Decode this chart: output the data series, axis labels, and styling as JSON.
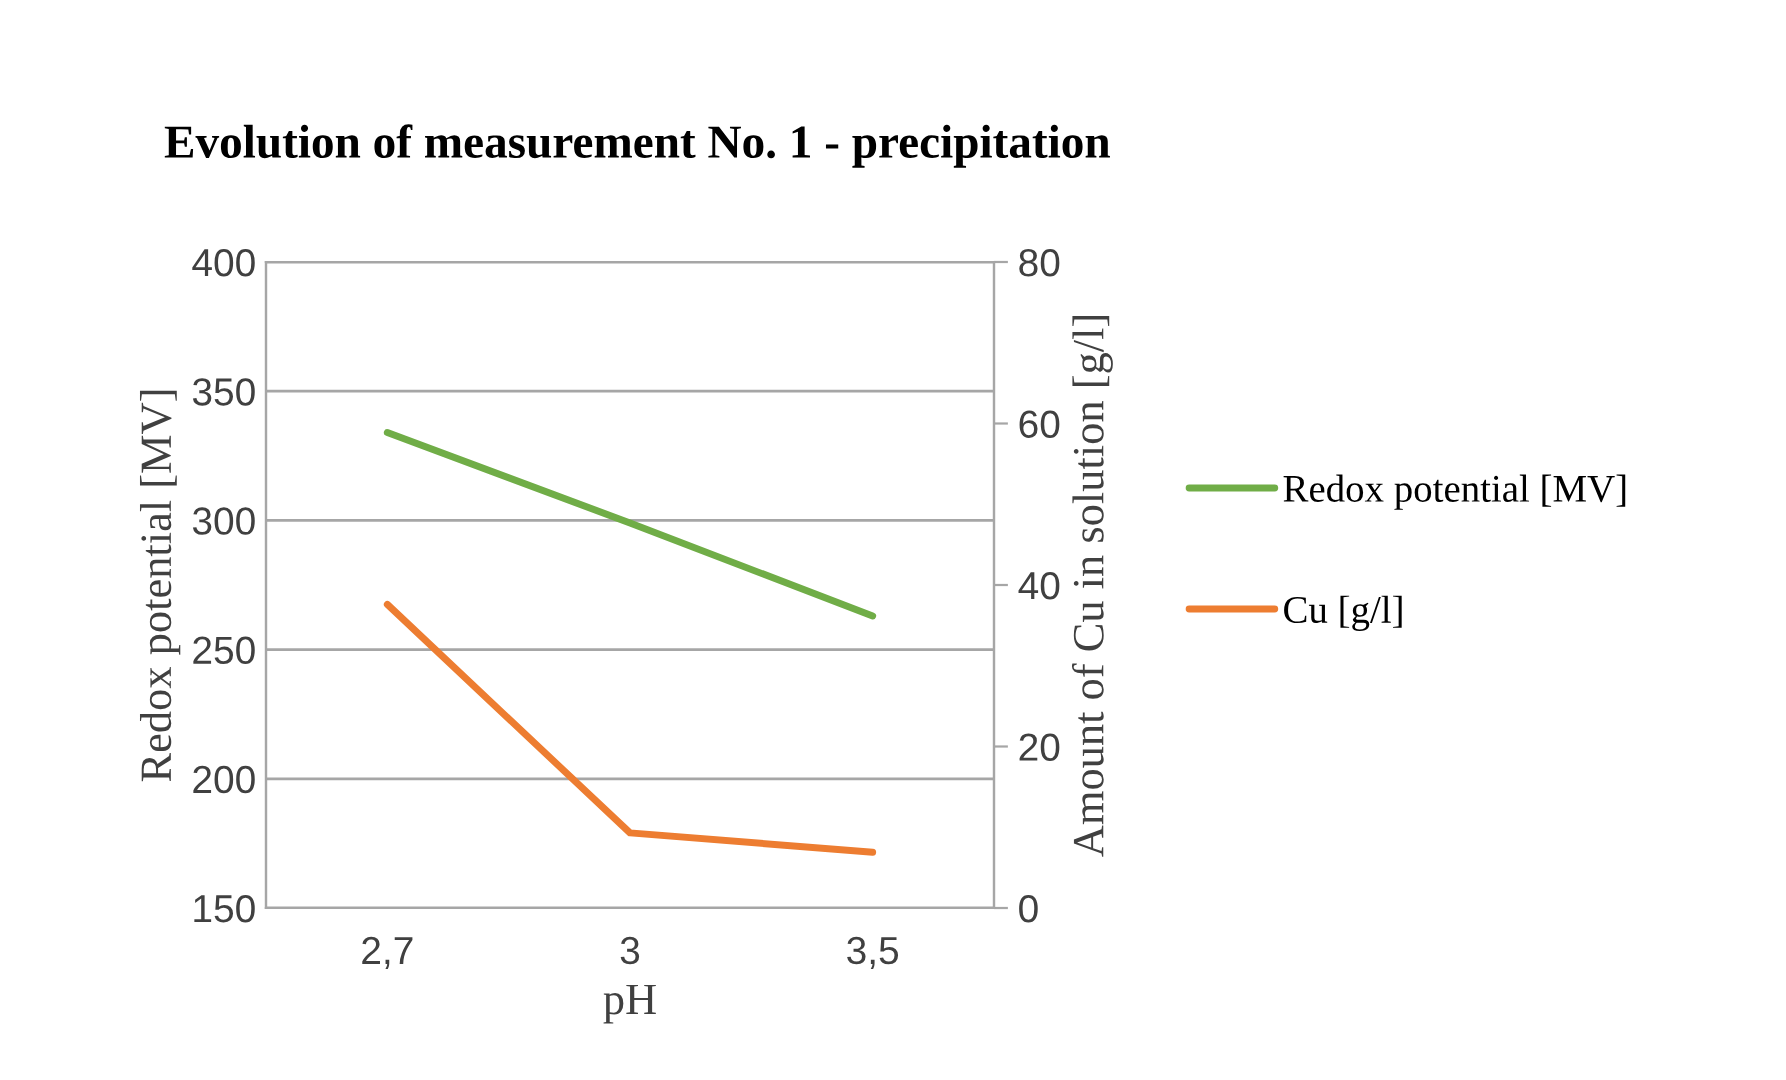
{
  "chart_data": {
    "type": "line",
    "title": "Evolution of measurement No. 1 - precipitation",
    "xlabel": "pH",
    "ylabel": "Redox potential [MV]",
    "y2label": "Amount of Cu in solution [g/l]",
    "categories": [
      "2,7",
      "3",
      "3,5"
    ],
    "series": [
      {
        "name": "Redox potential [MV]",
        "color": "#70ad47",
        "values": [
          334,
          299,
          263
        ]
      },
      {
        "name": "Cu [g/l]",
        "color": "#ed7d31",
        "values": [
          37.6,
          9.3,
          6.9
        ],
        "axis": "y2"
      }
    ],
    "ylim": [
      150,
      400
    ],
    "yticks": [
      150,
      200,
      250,
      300,
      350,
      400
    ],
    "y2lim": [
      0,
      80
    ],
    "y2ticks": [
      0,
      20,
      40,
      60,
      80
    ],
    "grid": "y",
    "legend": "right",
    "marker": "none",
    "line_style": "solid"
  }
}
